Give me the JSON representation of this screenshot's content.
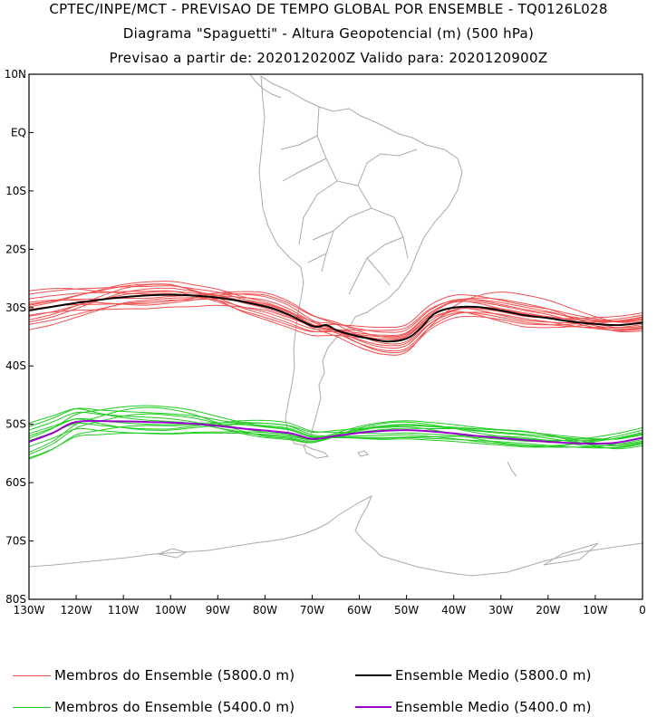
{
  "header": {
    "line1": "CPTEC/INPE/MCT - PREVISAO DE TEMPO GLOBAL POR ENSEMBLE - TQ0126L028",
    "line2": "Diagrama \"Spaguetti\" - Altura Geopotencial (m) (500 hPa)",
    "line3": "Previsao a partir de: 2020120200Z  Valido para: 2020120900Z"
  },
  "legend": {
    "members_5800": "Membros do Ensemble (5800.0 m)",
    "mean_5800": "Ensemble Medio (5800.0 m)",
    "members_5400": "Membros do Ensemble (5400.0 m)",
    "mean_5400": "Ensemble Medio (5400.0 m)"
  },
  "colors": {
    "members_5800": "#f05050",
    "mean_5800": "#000000",
    "members_5400": "#22cc22",
    "mean_5400": "#9900cc",
    "coast": "#aaaaaa"
  },
  "map": {
    "lon_range": [
      -130,
      0
    ],
    "lat_range": [
      -80,
      10
    ],
    "lat_ticks": [
      {
        "lat": 10,
        "label": "10N"
      },
      {
        "lat": 0,
        "label": "EQ"
      },
      {
        "lat": -10,
        "label": "10S"
      },
      {
        "lat": -20,
        "label": "20S"
      },
      {
        "lat": -30,
        "label": "30S"
      },
      {
        "lat": -40,
        "label": "40S"
      },
      {
        "lat": -50,
        "label": "50S"
      },
      {
        "lat": -60,
        "label": "60S"
      },
      {
        "lat": -70,
        "label": "70S"
      },
      {
        "lat": -80,
        "label": "80S"
      }
    ],
    "lon_ticks": [
      {
        "lon": -130,
        "label": "130W"
      },
      {
        "lon": -120,
        "label": "120W"
      },
      {
        "lon": -110,
        "label": "110W"
      },
      {
        "lon": -100,
        "label": "100W"
      },
      {
        "lon": -90,
        "label": "90W"
      },
      {
        "lon": -80,
        "label": "80W"
      },
      {
        "lon": -70,
        "label": "70W"
      },
      {
        "lon": -60,
        "label": "60W"
      },
      {
        "lon": -50,
        "label": "50W"
      },
      {
        "lon": -40,
        "label": "40W"
      },
      {
        "lon": -30,
        "label": "30W"
      },
      {
        "lon": -20,
        "label": "20W"
      },
      {
        "lon": -10,
        "label": "10W"
      },
      {
        "lon": 0,
        "label": "0"
      }
    ],
    "mean_5800": [
      [
        -130,
        -30.5
      ],
      [
        -120,
        -29.2
      ],
      [
        -110,
        -28.2
      ],
      [
        -100,
        -27.8
      ],
      [
        -90,
        -28.3
      ],
      [
        -80,
        -29.8
      ],
      [
        -75,
        -31.2
      ],
      [
        -71,
        -32.8
      ],
      [
        -69,
        -33.3
      ],
      [
        -67,
        -33.0
      ],
      [
        -65,
        -33.8
      ],
      [
        -62,
        -34.6
      ],
      [
        -58,
        -35.3
      ],
      [
        -54,
        -35.8
      ],
      [
        -50,
        -35.3
      ],
      [
        -47,
        -33.5
      ],
      [
        -44,
        -31.0
      ],
      [
        -40,
        -30.0
      ],
      [
        -35,
        -29.9
      ],
      [
        -30,
        -30.5
      ],
      [
        -25,
        -31.3
      ],
      [
        -20,
        -31.8
      ],
      [
        -15,
        -32.4
      ],
      [
        -10,
        -32.8
      ],
      [
        -5,
        -33.0
      ],
      [
        0,
        -32.6
      ]
    ],
    "mean_5400": [
      [
        -130,
        -53.0
      ],
      [
        -125,
        -51.5
      ],
      [
        -120,
        -49.6
      ],
      [
        -112,
        -49.5
      ],
      [
        -105,
        -49.6
      ],
      [
        -95,
        -49.9
      ],
      [
        -85,
        -50.7
      ],
      [
        -75,
        -51.5
      ],
      [
        -70,
        -52.5
      ],
      [
        -65,
        -52.0
      ],
      [
        -58,
        -51.3
      ],
      [
        -50,
        -51.0
      ],
      [
        -42,
        -51.4
      ],
      [
        -35,
        -52.0
      ],
      [
        -28,
        -52.5
      ],
      [
        -20,
        -53.0
      ],
      [
        -12,
        -53.3
      ],
      [
        -6,
        -53.2
      ],
      [
        0,
        -52.3
      ]
    ],
    "members_5800_offsets": [
      [
        -2.4,
        -1.0,
        0.5,
        1.5,
        1.0,
        0.5
      ],
      [
        2.8,
        1.6,
        0.4,
        -0.8,
        -1.2,
        -0.3
      ],
      [
        -1.6,
        1.9,
        -1.5,
        0.8,
        1.4,
        -0.6
      ],
      [
        1.4,
        -1.6,
        2.0,
        0.6,
        -0.9,
        0.9
      ],
      [
        -3.3,
        -0.7,
        1.1,
        -1.2,
        0.4,
        -1.1
      ],
      [
        2.0,
        0.8,
        -1.9,
        1.9,
        0.2,
        0.7
      ],
      [
        0.6,
        2.4,
        0.7,
        -1.7,
        -0.6,
        -0.9
      ],
      [
        -0.8,
        -2.2,
        -0.6,
        2.4,
        1.7,
        0.5
      ],
      [
        1.1,
        -0.4,
        1.7,
        -2.0,
        -1.5,
        1.3
      ],
      [
        -2.0,
        1.2,
        -0.3,
        0.3,
        2.0,
        -1.4
      ],
      [
        0.2,
        -1.3,
        2.4,
        -0.5,
        -0.2,
        1.7
      ],
      [
        3.4,
        0.3,
        -1.0,
        1.0,
        0.8,
        -0.8
      ],
      [
        -1.0,
        0.6,
        0.2,
        -2.4,
        3.5,
        0.2
      ],
      [
        0.9,
        2.0,
        -2.3,
        0.4,
        -2.0,
        1.0
      ]
    ],
    "members_5400_offsets": [
      [
        -2.8,
        -1.9,
        -0.3,
        0.8,
        1.0,
        0.5
      ],
      [
        2.6,
        1.6,
        0.6,
        -0.8,
        -1.0,
        -0.3
      ],
      [
        -1.8,
        2.5,
        -1.0,
        0.8,
        1.4,
        -0.6
      ],
      [
        1.4,
        -1.4,
        1.3,
        0.6,
        -0.9,
        0.9
      ],
      [
        -3.0,
        -0.6,
        0.9,
        -1.2,
        0.4,
        -1.1
      ],
      [
        2.0,
        0.8,
        -1.2,
        1.4,
        0.2,
        0.7
      ],
      [
        0.6,
        2.8,
        0.7,
        -1.3,
        -0.6,
        -0.9
      ],
      [
        -0.8,
        -2.0,
        -0.6,
        1.6,
        1.4,
        0.5
      ],
      [
        1.0,
        -0.4,
        1.3,
        -1.5,
        -1.2,
        1.3
      ],
      [
        -2.2,
        1.4,
        -0.3,
        0.3,
        1.5,
        -1.4
      ],
      [
        0.2,
        -1.2,
        1.8,
        -0.5,
        -0.2,
        1.7
      ],
      [
        3.2,
        0.3,
        -0.8,
        1.0,
        0.8,
        -0.8
      ]
    ]
  }
}
